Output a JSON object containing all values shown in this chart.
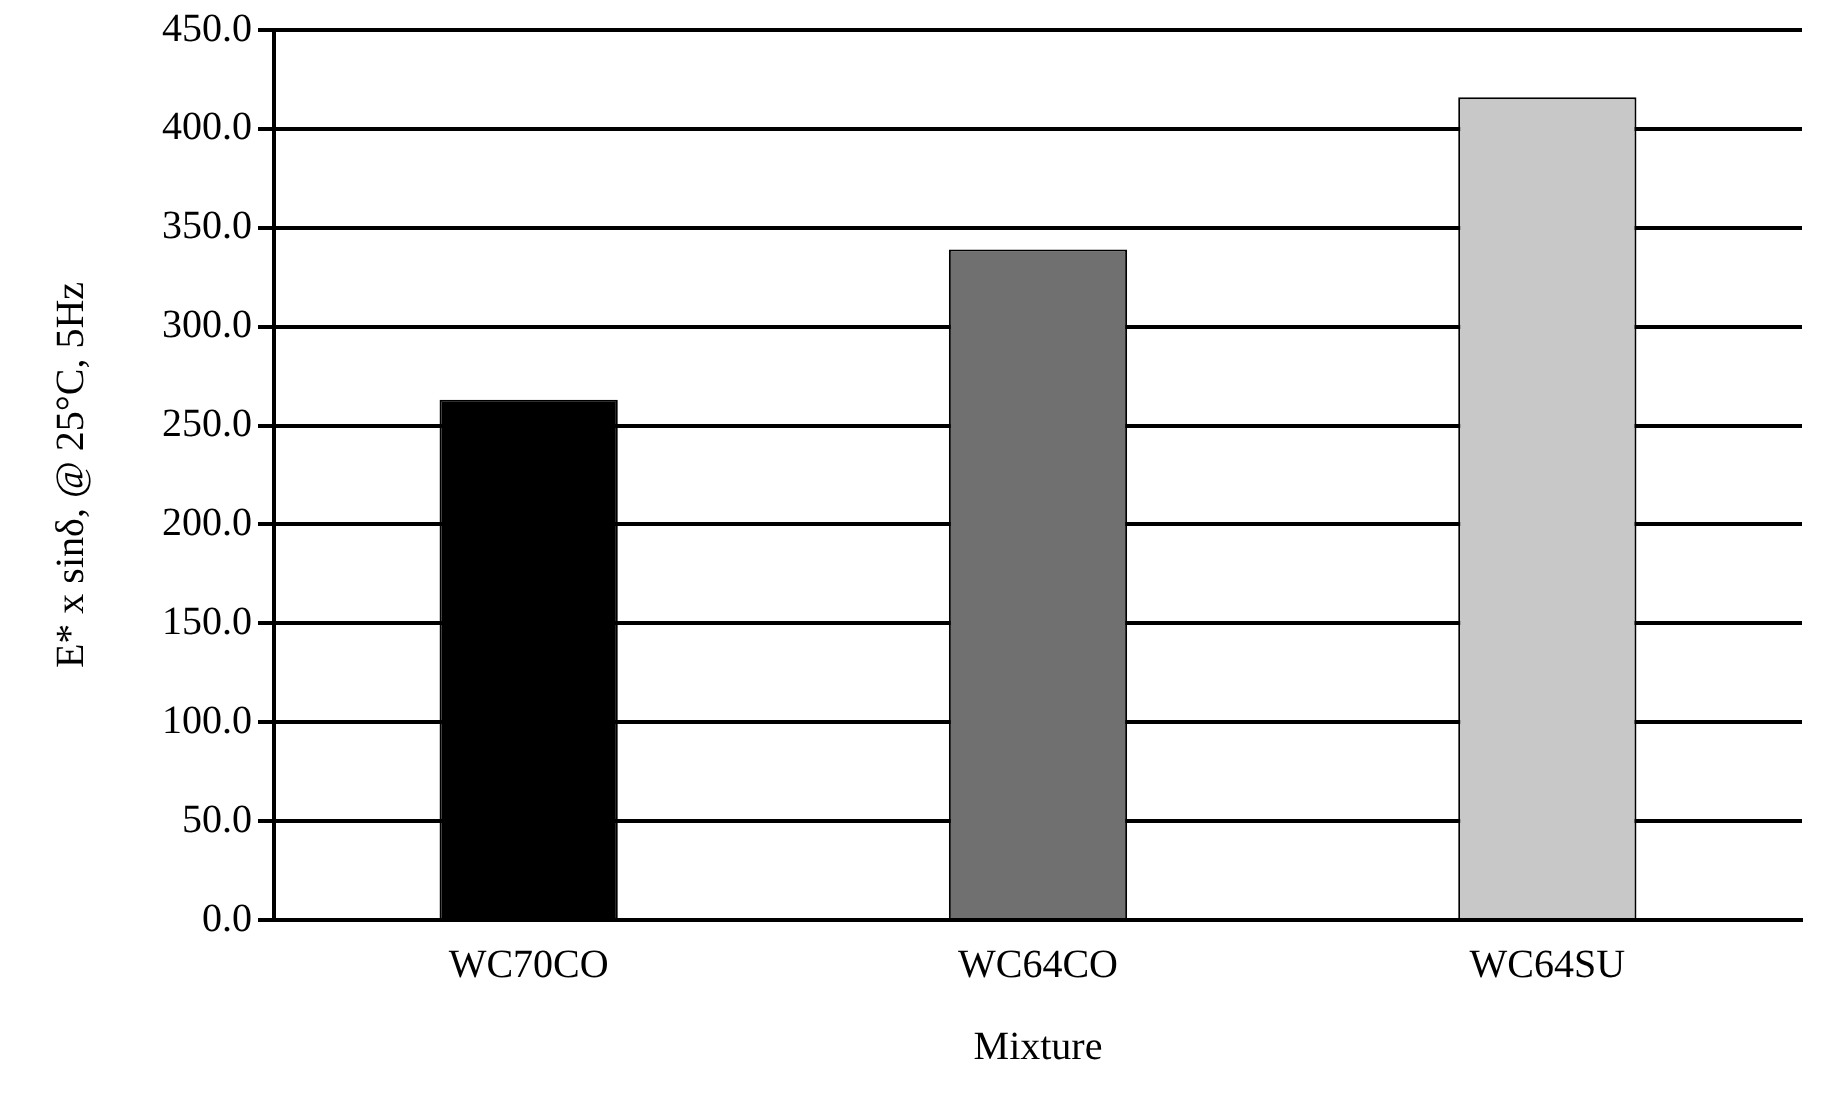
{
  "chart_data": {
    "type": "bar",
    "xlabel": "Mixture",
    "ylabel": "E* x sinδ, @ 25°C, 5Hz",
    "categories": [
      "WC70CO",
      "WC64CO",
      "WC64SU"
    ],
    "values": [
      263,
      339,
      416
    ],
    "colors": [
      "#000000",
      "#707070",
      "#c8c8c8"
    ],
    "ylim": [
      0,
      450
    ],
    "yticks": [
      {
        "value": 0,
        "label": "0.0"
      },
      {
        "value": 50,
        "label": "50.0"
      },
      {
        "value": 100,
        "label": "100.0"
      },
      {
        "value": 150,
        "label": "150.0"
      },
      {
        "value": 200,
        "label": "200.0"
      },
      {
        "value": 250,
        "label": "250.0"
      },
      {
        "value": 300,
        "label": "300.0"
      },
      {
        "value": 350,
        "label": "350.0"
      },
      {
        "value": 400,
        "label": "400.0"
      },
      {
        "value": 450,
        "label": "450.0"
      }
    ],
    "grid": "y",
    "legend": false
  }
}
